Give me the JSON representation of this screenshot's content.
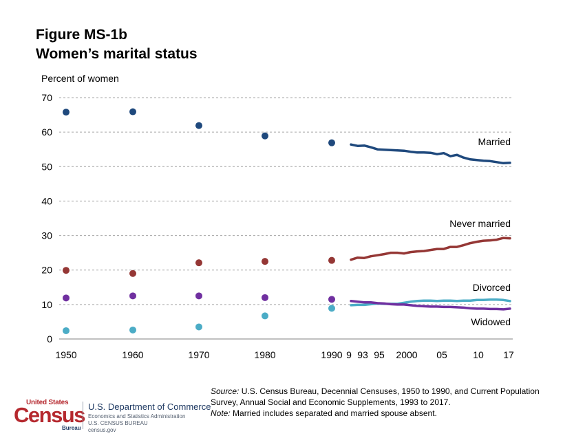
{
  "title_line1": "Figure MS-1b",
  "title_line2": "Women’s marital status",
  "source": {
    "label": "Source:",
    "text": "U.S. Census Bureau, Decennial Censuses, 1950 to 1990, and Current Population Survey, Annual Social and Economic Supplements, 1993 to 2017.",
    "note_label": "Note:",
    "note_text": "Married includes separated and married spouse absent."
  },
  "footer": {
    "logo_top": "United States",
    "logo_main": "Census",
    "logo_bureau": "Bureau",
    "dept": "U.S. Department of Commerce",
    "line2": "Economics and Statistics Administration",
    "line3": "U.S. CENSUS BUREAU",
    "line4": "census.gov"
  },
  "colors": {
    "married": "#1f497d",
    "never_married": "#953735",
    "divorced": "#7030a0",
    "widowed": "#4bacc6",
    "grid": "#a6a6a6"
  },
  "chart_data": {
    "type": "line",
    "title": "Women’s marital status",
    "ylabel": "Percent of women",
    "xlabel": "",
    "ylim": [
      0,
      70
    ],
    "yticks": [
      0,
      10,
      20,
      30,
      40,
      50,
      60,
      70
    ],
    "census_x_labels": [
      "1950",
      "1960",
      "1970",
      "1980",
      "1990"
    ],
    "cps_x_labels": [
      "9",
      "93",
      "95",
      "2000",
      "05",
      "10",
      "17"
    ],
    "census_points": {
      "years": [
        1950,
        1960,
        1970,
        1980,
        1990
      ],
      "series": [
        {
          "name": "Married",
          "values": [
            65.8,
            65.9,
            61.9,
            58.9,
            56.9
          ]
        },
        {
          "name": "Never married",
          "values": [
            19.9,
            19.0,
            22.1,
            22.5,
            22.8
          ]
        },
        {
          "name": "Divorced",
          "values": [
            2.4,
            2.6,
            3.5,
            6.7,
            8.9
          ]
        },
        {
          "name": "Widowed",
          "values": [
            11.9,
            12.5,
            12.5,
            12.0,
            11.5
          ]
        }
      ]
    },
    "cps_lines": {
      "years": [
        1993,
        1994,
        1995,
        1996,
        1997,
        1998,
        1999,
        2000,
        2001,
        2002,
        2003,
        2004,
        2005,
        2006,
        2007,
        2008,
        2009,
        2010,
        2011,
        2012,
        2013,
        2014,
        2015,
        2016,
        2017
      ],
      "series": [
        {
          "name": "Married",
          "label": "Married",
          "values": [
            56.4,
            56.0,
            56.1,
            55.6,
            55.0,
            54.9,
            54.8,
            54.7,
            54.6,
            54.3,
            54.1,
            54.1,
            54.0,
            53.6,
            53.9,
            53.0,
            53.4,
            52.6,
            52.1,
            51.9,
            51.7,
            51.6,
            51.3,
            51.0,
            51.1
          ]
        },
        {
          "name": "Never married",
          "label": "Never married",
          "values": [
            23.0,
            23.6,
            23.5,
            24.0,
            24.3,
            24.6,
            25.0,
            25.0,
            24.8,
            25.2,
            25.4,
            25.5,
            25.8,
            26.1,
            26.1,
            26.7,
            26.7,
            27.2,
            27.8,
            28.2,
            28.5,
            28.6,
            28.8,
            29.3,
            29.2
          ]
        },
        {
          "name": "Divorced",
          "label": "Divorced",
          "values": [
            9.8,
            9.9,
            9.9,
            10.1,
            10.3,
            10.2,
            10.2,
            10.2,
            10.5,
            10.8,
            11.0,
            11.1,
            11.1,
            11.0,
            11.1,
            11.1,
            11.0,
            11.1,
            11.1,
            11.3,
            11.3,
            11.4,
            11.4,
            11.3,
            11.0
          ]
        },
        {
          "name": "Widowed",
          "label": "Widowed",
          "values": [
            11.0,
            10.8,
            10.6,
            10.6,
            10.4,
            10.3,
            10.1,
            10.0,
            10.0,
            9.8,
            9.6,
            9.5,
            9.4,
            9.4,
            9.3,
            9.3,
            9.2,
            9.1,
            8.9,
            8.8,
            8.8,
            8.7,
            8.7,
            8.6,
            8.8
          ]
        }
      ]
    }
  }
}
